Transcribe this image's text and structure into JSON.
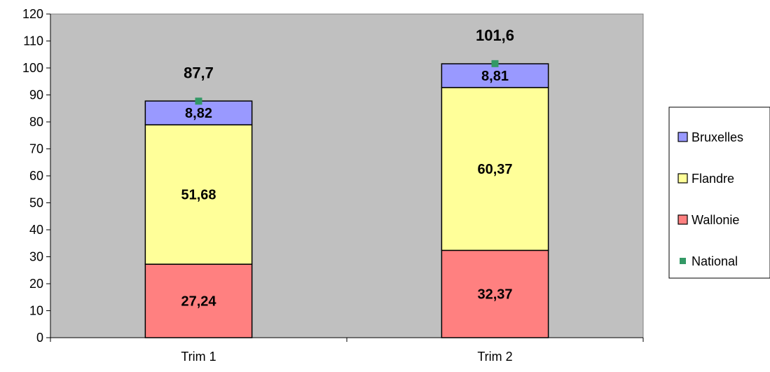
{
  "chart_data": {
    "type": "bar",
    "stacked": true,
    "categories": [
      "Trim 1",
      "Trim 2"
    ],
    "series": [
      {
        "name": "Wallonie",
        "values": [
          27.24,
          32.37
        ],
        "labels": [
          "27,24",
          "32,37"
        ],
        "color": "#ff8080"
      },
      {
        "name": "Flandre",
        "values": [
          51.68,
          60.37
        ],
        "labels": [
          "51,68",
          "60,37"
        ],
        "color": "#ffff99"
      },
      {
        "name": "Bruxelles",
        "values": [
          8.82,
          8.81
        ],
        "labels": [
          "8,82",
          "8,81"
        ],
        "color": "#9999ff"
      }
    ],
    "markers": {
      "name": "National",
      "values": [
        87.7,
        101.6
      ],
      "labels": [
        "87,7",
        "101,6"
      ],
      "color": "#339966"
    },
    "legend_order": [
      "Bruxelles",
      "Flandre",
      "Wallonie",
      "National"
    ],
    "yticks": [
      "0",
      "10",
      "20",
      "30",
      "40",
      "50",
      "60",
      "70",
      "80",
      "90",
      "100",
      "110",
      "120"
    ],
    "ylim": [
      0,
      120
    ],
    "legend_position": "right",
    "plot_background": "#c0c0c0",
    "grid": false
  }
}
